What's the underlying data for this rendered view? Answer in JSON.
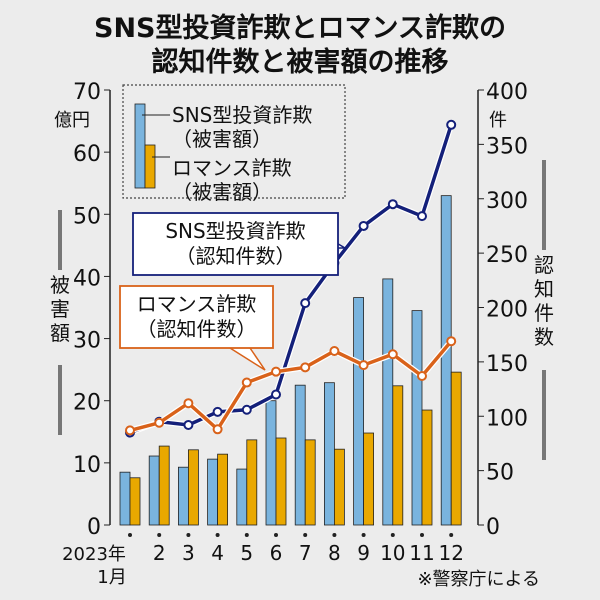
{
  "chart_data": {
    "type": "bar+line",
    "title": [
      "SNS型投資詐欺とロマンス詐欺の",
      "認知件数と被害額の推移"
    ],
    "categories": [
      "1",
      "2",
      "3",
      "4",
      "5",
      "6",
      "7",
      "8",
      "9",
      "10",
      "11",
      "12"
    ],
    "x_first_label": [
      "2023年",
      "1月"
    ],
    "left_axis": {
      "label": "被害額",
      "unit": "億円",
      "ylim": [
        0,
        70
      ],
      "ticks": [
        0,
        10,
        20,
        30,
        40,
        50,
        60,
        70
      ]
    },
    "right_axis": {
      "label": "認知件数",
      "unit": "件",
      "ylim": [
        0,
        400
      ],
      "ticks": [
        0,
        50,
        100,
        150,
        200,
        250,
        300,
        350,
        400
      ]
    },
    "bar_series": [
      {
        "name": "SNS型投資詐欺（被害額）",
        "name_lines": [
          "SNS型投資詐欺",
          "（被害額）"
        ],
        "color": "#7ab4de",
        "values": [
          8.5,
          11.1,
          9.3,
          10.6,
          9.0,
          20.0,
          22.5,
          22.9,
          36.6,
          39.6,
          34.5,
          53.0
        ]
      },
      {
        "name": "ロマンス詐欺（被害額）",
        "name_lines": [
          "ロマンス詐欺",
          "（被害額）"
        ],
        "color": "#e9a800",
        "values": [
          7.6,
          12.7,
          12.1,
          11.4,
          13.7,
          14.0,
          13.7,
          12.2,
          14.8,
          22.4,
          18.5,
          24.6
        ]
      }
    ],
    "line_series": [
      {
        "name": "SNS型投資詐欺（認知件数）",
        "name_lines": [
          "SNS型投資詐欺",
          "（認知件数）"
        ],
        "color": "#14207a",
        "values": [
          85,
          95,
          92,
          104,
          106,
          120,
          204,
          241,
          275,
          295,
          284,
          368
        ]
      },
      {
        "name": "ロマンス詐欺（認知件数）",
        "name_lines": [
          "ロマンス詐欺",
          "（認知件数）"
        ],
        "color": "#d9621a",
        "values": [
          87,
          94,
          112,
          88,
          131,
          141,
          145,
          160,
          147,
          157,
          137,
          169
        ]
      }
    ],
    "source": "※警察庁による"
  }
}
